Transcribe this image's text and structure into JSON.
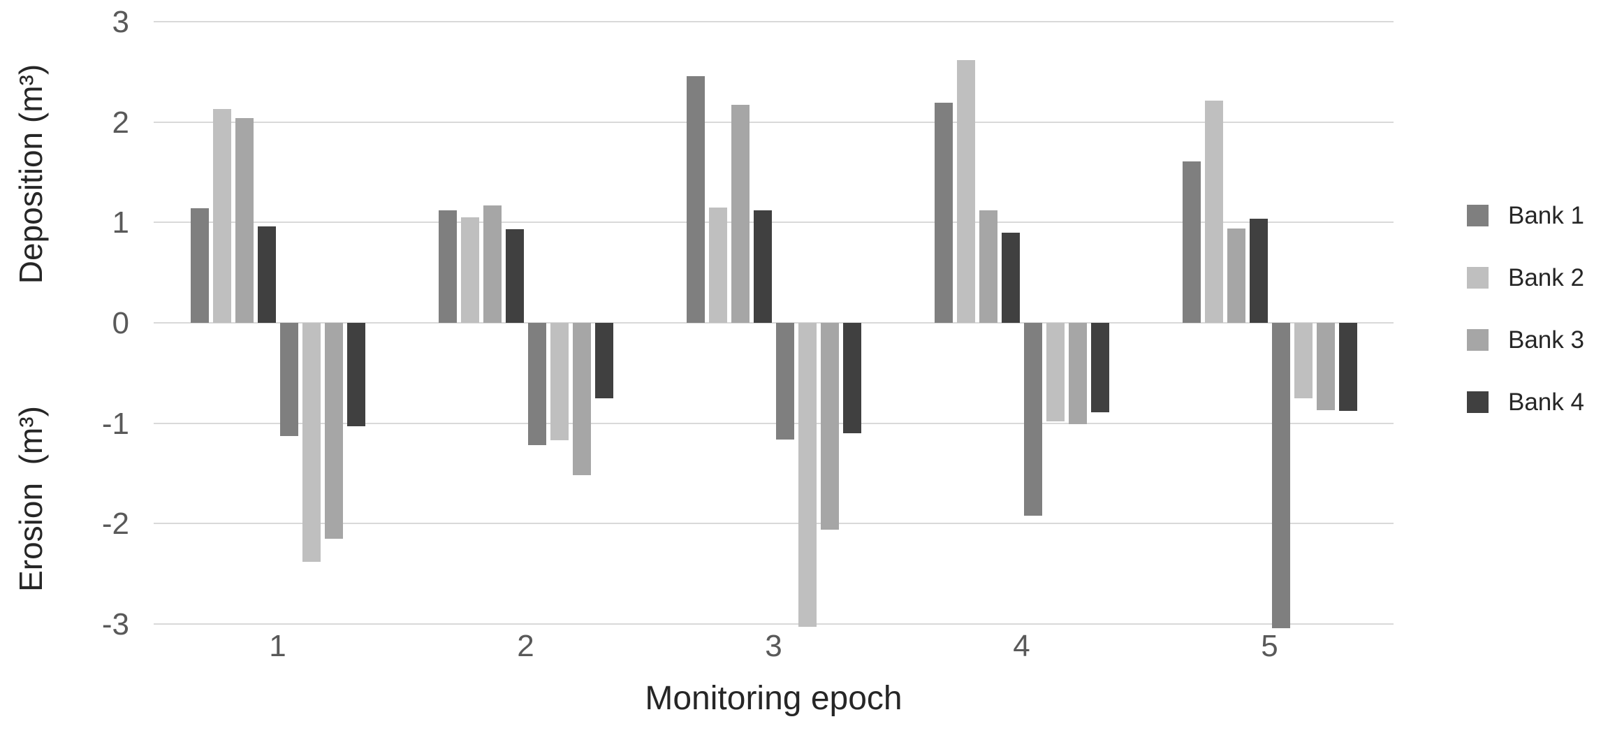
{
  "chart_data": {
    "type": "bar",
    "title": "",
    "xlabel": "Monitoring epoch",
    "ylabel_top": "Deposition (m³)",
    "ylabel_bottom": "Erosion  (m³)",
    "categories": [
      "1",
      "2",
      "3",
      "4",
      "5"
    ],
    "y_ticks": [
      3,
      2,
      1,
      0,
      -1,
      -2,
      -3
    ],
    "ylim": [
      -3,
      3
    ],
    "grid": true,
    "legend_position": "right",
    "series": [
      {
        "name": "Bank 1",
        "color": "#7f7f7f",
        "deposition": [
          1.14,
          1.12,
          2.46,
          2.19,
          1.61
        ],
        "erosion": [
          -1.13,
          -1.22,
          -1.16,
          -1.92,
          -3.04
        ]
      },
      {
        "name": "Bank 2",
        "color": "#bfbfbf",
        "deposition": [
          2.13,
          1.05,
          1.15,
          2.62,
          2.21
        ],
        "erosion": [
          -2.38,
          -1.17,
          -3.03,
          -0.98,
          -0.75
        ]
      },
      {
        "name": "Bank 3",
        "color": "#a6a6a6",
        "deposition": [
          2.04,
          1.17,
          2.17,
          1.12,
          0.94
        ],
        "erosion": [
          -2.15,
          -1.52,
          -2.06,
          -1.01,
          -0.87
        ]
      },
      {
        "name": "Bank 4",
        "color": "#404040",
        "deposition": [
          0.96,
          0.93,
          1.12,
          0.9,
          1.04
        ],
        "erosion": [
          -1.03,
          -0.75,
          -1.1,
          -0.89,
          -0.88
        ]
      }
    ],
    "colors": {
      "gridline": "#d9d9d9",
      "tick_text": "#595959",
      "axis_title_text": "#262626",
      "background": "#ffffff"
    }
  }
}
